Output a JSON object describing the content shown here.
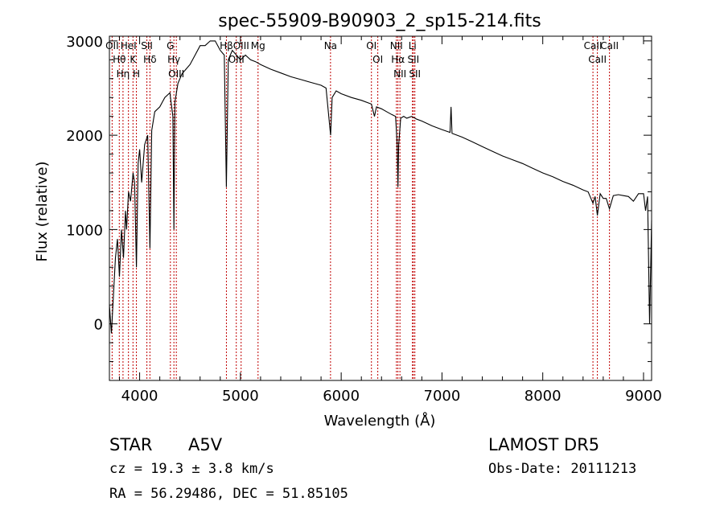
{
  "chart_data": {
    "type": "line",
    "title": "spec-55909-B90903_2_sp15-214.fits",
    "xlabel": "Wavelength (Å)",
    "ylabel": "Flux (relative)",
    "xlim": [
      3700,
      9080
    ],
    "ylim": [
      -600,
      3050
    ],
    "xticks": [
      4000,
      5000,
      6000,
      7000,
      8000,
      9000
    ],
    "yticks": [
      0,
      1000,
      2000,
      3000
    ],
    "grid": false,
    "series": [
      {
        "x": [
          3700,
          3720,
          3740,
          3760,
          3780,
          3800,
          3820,
          3840,
          3860,
          3870,
          3890,
          3910,
          3935,
          3950,
          3968,
          3985,
          4000,
          4020,
          4050,
          4080,
          4102,
          4120,
          4150,
          4200,
          4250,
          4300,
          4330,
          4340,
          4350,
          4380,
          4420,
          4460,
          4500,
          4550,
          4600,
          4650,
          4700,
          4750,
          4800,
          4840,
          4861,
          4880,
          4920,
          4960,
          5000,
          5050,
          5100,
          5150,
          5200,
          5300,
          5400,
          5500,
          5600,
          5700,
          5800,
          5850,
          5890,
          5895,
          5910,
          5950,
          6000,
          6100,
          6200,
          6300,
          6330,
          6350,
          6400,
          6450,
          6500,
          6540,
          6555,
          6563,
          6570,
          6590,
          6620,
          6650,
          6700,
          6750,
          6800,
          6900,
          7000,
          7080,
          7090,
          7100,
          7200,
          7300,
          7400,
          7500,
          7600,
          7700,
          7800,
          7900,
          8000,
          8100,
          8200,
          8300,
          8400,
          8450,
          8498,
          8520,
          8542,
          8570,
          8600,
          8630,
          8662,
          8700,
          8750,
          8800,
          8850,
          8900,
          8950,
          9000,
          9020,
          9040,
          9060,
          9080
        ],
        "y": [
          200,
          -100,
          300,
          700,
          900,
          500,
          1000,
          700,
          1200,
          1000,
          1400,
          1300,
          1600,
          1500,
          600,
          1700,
          1850,
          1500,
          1900,
          2000,
          800,
          2050,
          2250,
          2300,
          2400,
          2450,
          2200,
          1000,
          2350,
          2550,
          2650,
          2700,
          2750,
          2850,
          2950,
          2950,
          3000,
          3000,
          2900,
          2850,
          1450,
          2800,
          2900,
          2850,
          2800,
          2850,
          2800,
          2780,
          2750,
          2700,
          2660,
          2620,
          2590,
          2560,
          2530,
          2500,
          2050,
          2000,
          2400,
          2470,
          2440,
          2400,
          2370,
          2330,
          2200,
          2300,
          2280,
          2250,
          2220,
          2200,
          1900,
          1450,
          1900,
          2180,
          2200,
          2180,
          2200,
          2170,
          2150,
          2100,
          2060,
          2030,
          2300,
          2020,
          1980,
          1930,
          1880,
          1830,
          1780,
          1740,
          1700,
          1650,
          1600,
          1560,
          1510,
          1470,
          1420,
          1400,
          1280,
          1350,
          1150,
          1380,
          1330,
          1330,
          1220,
          1360,
          1370,
          1360,
          1350,
          1300,
          1380,
          1380,
          1200,
          1350,
          0,
          1100
        ]
      }
    ],
    "lines": [
      {
        "name": "OII",
        "x": 3727
      },
      {
        "name": "Hθ",
        "x": 3798
      },
      {
        "name": "Hη",
        "x": 3835
      },
      {
        "name": "HeI",
        "x": 3889
      },
      {
        "name": "K",
        "x": 3934
      },
      {
        "name": "H",
        "x": 3968
      },
      {
        "name": "SII",
        "x": 4072
      },
      {
        "name": "Hδ",
        "x": 4102
      },
      {
        "name": "G",
        "x": 4305
      },
      {
        "name": "Hγ",
        "x": 4340
      },
      {
        "name": "OIII",
        "x": 4364
      },
      {
        "name": "Hβ",
        "x": 4861
      },
      {
        "name": "OIII",
        "x": 4959
      },
      {
        "name": "OIII",
        "x": 5007
      },
      {
        "name": "Mg",
        "x": 5175
      },
      {
        "name": "Na",
        "x": 5894
      },
      {
        "name": "OI",
        "x": 6300
      },
      {
        "name": "OI",
        "x": 6363
      },
      {
        "name": "NII",
        "x": 6548
      },
      {
        "name": "Hα",
        "x": 6563
      },
      {
        "name": "NII",
        "x": 6583
      },
      {
        "name": "Li",
        "x": 6707
      },
      {
        "name": "SII",
        "x": 6716
      },
      {
        "name": "SII",
        "x": 6731
      },
      {
        "name": "CaII",
        "x": 8498
      },
      {
        "name": "CaII",
        "x": 8542
      },
      {
        "name": "CaII",
        "x": 8662
      }
    ]
  },
  "info": {
    "object_class": "STAR",
    "subclass": "A5V",
    "redshift": "cz = 19.3 ± 3.8 km/s",
    "coords": "RA =  56.29486, DEC =  51.85105",
    "survey": "LAMOST  DR5",
    "obs_date": "Obs-Date: 20111213"
  },
  "colors": {
    "axis": "#000000",
    "spectrum": "#000000",
    "line_markers": "#c00000",
    "background": "#ffffff"
  }
}
